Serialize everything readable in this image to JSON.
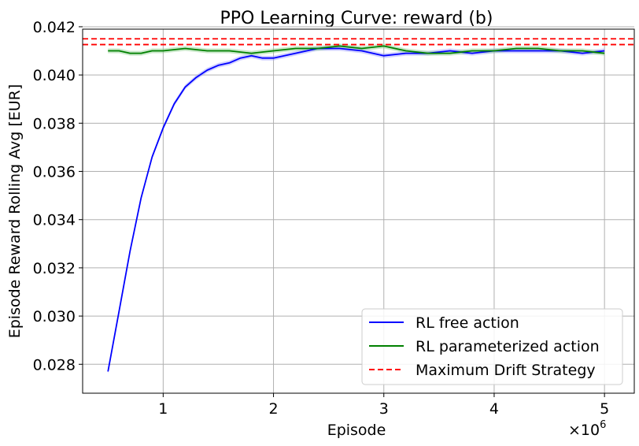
{
  "chart_data": {
    "type": "line",
    "title": "PPO Learning Curve: reward (b)",
    "xlabel": "Episode",
    "ylabel": "Episode Reward Rolling Avg [EUR]",
    "x_multiplier_label": "×10",
    "x_multiplier_exp": "6",
    "xlim": [
      0.27,
      5.27
    ],
    "ylim": [
      0.0268,
      0.0419
    ],
    "x_ticks": [
      1,
      2,
      3,
      4,
      5
    ],
    "x_tick_labels": [
      "1",
      "2",
      "3",
      "4",
      "5"
    ],
    "y_ticks": [
      0.028,
      0.03,
      0.032,
      0.034,
      0.036,
      0.038,
      0.04,
      0.042
    ],
    "y_tick_labels": [
      "0.028",
      "0.030",
      "0.032",
      "0.034",
      "0.036",
      "0.038",
      "0.040",
      "0.042"
    ],
    "grid": true,
    "legend_position": "bottom-right",
    "series": [
      {
        "name": "RL free action",
        "color": "#0000ff",
        "band_color": "#9999ff",
        "style": "solid",
        "x": [
          0.5,
          0.6,
          0.7,
          0.8,
          0.9,
          1.0,
          1.1,
          1.2,
          1.3,
          1.4,
          1.5,
          1.6,
          1.7,
          1.8,
          1.9,
          2.0,
          2.2,
          2.4,
          2.6,
          2.8,
          3.0,
          3.2,
          3.4,
          3.6,
          3.8,
          4.0,
          4.2,
          4.4,
          4.6,
          4.8,
          5.0
        ],
        "y": [
          0.0277,
          0.0302,
          0.0327,
          0.0349,
          0.0366,
          0.0378,
          0.0388,
          0.0395,
          0.0399,
          0.0402,
          0.0404,
          0.0405,
          0.0407,
          0.0408,
          0.0407,
          0.0407,
          0.0409,
          0.0411,
          0.0411,
          0.041,
          0.0408,
          0.0409,
          0.0409,
          0.041,
          0.0409,
          0.041,
          0.041,
          0.041,
          0.041,
          0.0409,
          0.041
        ]
      },
      {
        "name": "RL parameterized action",
        "color": "#008000",
        "band_color": "#88cc88",
        "style": "solid",
        "x": [
          0.5,
          0.6,
          0.7,
          0.8,
          0.9,
          1.0,
          1.2,
          1.4,
          1.6,
          1.8,
          2.0,
          2.2,
          2.4,
          2.6,
          2.8,
          3.0,
          3.2,
          3.4,
          3.6,
          3.8,
          4.0,
          4.2,
          4.4,
          4.6,
          4.8,
          5.0
        ],
        "y": [
          0.041,
          0.041,
          0.0409,
          0.0409,
          0.041,
          0.041,
          0.0411,
          0.041,
          0.041,
          0.0409,
          0.041,
          0.0411,
          0.0411,
          0.0412,
          0.0411,
          0.0412,
          0.041,
          0.0409,
          0.0409,
          0.041,
          0.041,
          0.0411,
          0.0411,
          0.041,
          0.041,
          0.0409
        ]
      },
      {
        "name": "Maximum Drift Strategy",
        "color": "#ff0000",
        "style": "dashed",
        "hlines": [
          0.0415,
          0.04126
        ]
      }
    ]
  }
}
